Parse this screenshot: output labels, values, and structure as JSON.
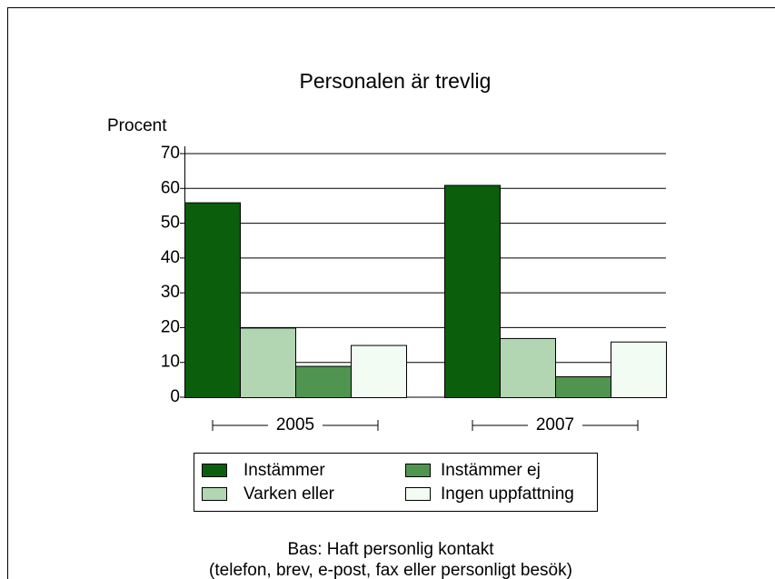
{
  "chart_data": {
    "type": "bar",
    "title": "Personalen är trevlig",
    "y_label": "Procent",
    "categories": [
      "2005",
      "2007"
    ],
    "series": [
      {
        "name": "Instämmer",
        "color": "#0b5e0b",
        "values": [
          56,
          61
        ]
      },
      {
        "name": "Varken eller",
        "color": "#b2d5b2",
        "values": [
          20,
          17
        ]
      },
      {
        "name": "Instämmer ej",
        "color": "#4f9550",
        "values": [
          9,
          6
        ]
      },
      {
        "name": "Ingen uppfattning",
        "color": "#f2fcf2",
        "values": [
          15,
          16
        ]
      }
    ],
    "ylim": [
      0,
      70
    ],
    "yticks": [
      0,
      10,
      20,
      30,
      40,
      50,
      60,
      70
    ],
    "grid": true,
    "legend": "bottom",
    "notes": [
      "Bas: Haft personlig kontakt",
      "(telefon, brev, e-post, fax eller personligt besök)"
    ]
  }
}
